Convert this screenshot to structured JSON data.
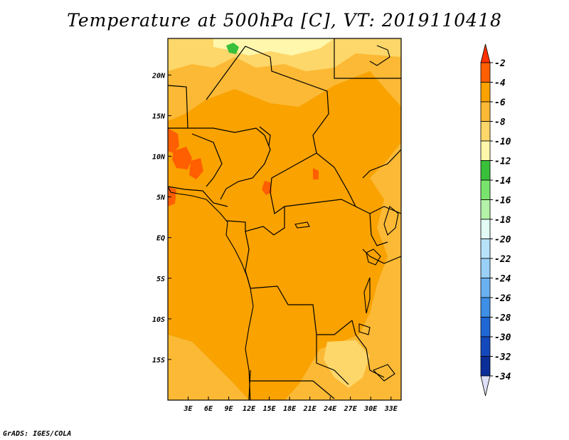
{
  "title": "Temperature at 500hPa [C], VT: 2019110418",
  "credit": "GrADS: IGES/COLA",
  "map": {
    "lon_range": [
      0,
      34.5
    ],
    "lat_range": [
      -20,
      24.5
    ],
    "lon_labels": [
      {
        "lon": 3,
        "label": "3E"
      },
      {
        "lon": 6,
        "label": "6E"
      },
      {
        "lon": 9,
        "label": "9E"
      },
      {
        "lon": 12,
        "label": "12E"
      },
      {
        "lon": 15,
        "label": "15E"
      },
      {
        "lon": 18,
        "label": "18E"
      },
      {
        "lon": 21,
        "label": "21E"
      },
      {
        "lon": 24,
        "label": "24E"
      },
      {
        "lon": 27,
        "label": "27E"
      },
      {
        "lon": 30,
        "label": "30E"
      },
      {
        "lon": 33,
        "label": "33E"
      }
    ],
    "lat_labels": [
      {
        "lat": 20,
        "label": "20N"
      },
      {
        "lat": 15,
        "label": "15N"
      },
      {
        "lat": 10,
        "label": "10N"
      },
      {
        "lat": 5,
        "label": "5N"
      },
      {
        "lat": 0,
        "label": "EQ"
      },
      {
        "lat": -5,
        "label": "5S"
      },
      {
        "lat": -10,
        "label": "10S"
      },
      {
        "lat": -15,
        "label": "15S"
      }
    ],
    "background_color": "#f9a200"
  },
  "legend": {
    "levels": [
      "-2",
      "-4",
      "-6",
      "-8",
      "-10",
      "-12",
      "-14",
      "-16",
      "-18",
      "-20",
      "-22",
      "-24",
      "-26",
      "-28",
      "-30",
      "-32",
      "-34"
    ],
    "colors": [
      "#ff5f00",
      "#f9a200",
      "#fbb935",
      "#fdd76a",
      "#fff7ab",
      "#39c03b",
      "#79e46d",
      "#b3f2a8",
      "#e2fbf4",
      "#b7e2fa",
      "#9ad0f8",
      "#69b1f1",
      "#3e8fe5",
      "#1f67d4",
      "#1449bd",
      "#0b2e98",
      "#080a60"
    ],
    "top_arrow_color": "#ff3300",
    "bottom_arrow_color": "#dde0f6"
  }
}
